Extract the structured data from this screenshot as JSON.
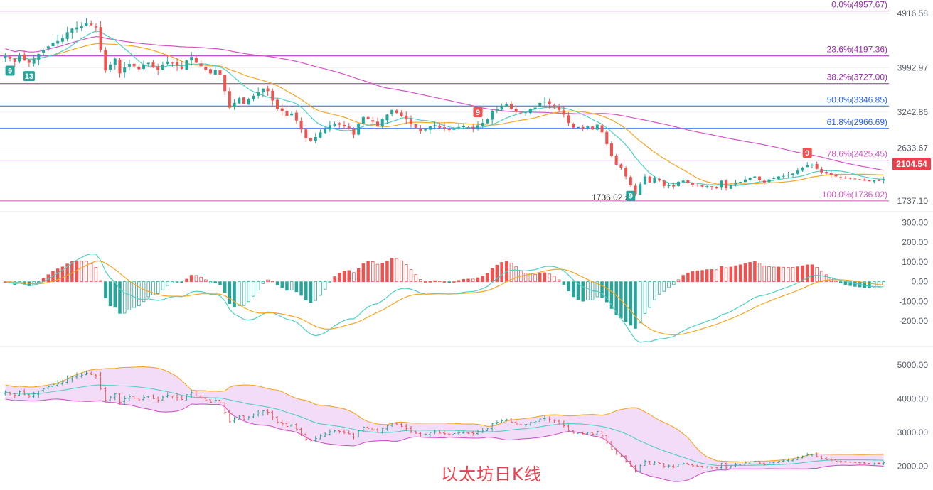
{
  "caption": "以太坊日K线",
  "current_price_label": "2104.54",
  "low_marker_label": "1736.02",
  "colors": {
    "up": "#26a69a",
    "down": "#ef5350",
    "ma_short": "#4dd0c4",
    "ma_mid": "#f5a623",
    "ma_long": "#d454c8",
    "macd_dif": "#4dd0c4",
    "macd_dea": "#f5a623",
    "boll_upper": "#f5a623",
    "boll_mid": "#4dd0c4",
    "boll_lower": "#d454c8",
    "boll_fill": "#f3dcf7"
  },
  "chart_data": [
    {
      "type": "candlestick",
      "panel": "price",
      "yaxis_ticks": [
        "4916.58",
        "3992.97",
        "3242.86",
        "2633.67",
        "1737.10"
      ],
      "ylim": [
        1650,
        5050
      ],
      "fibonacci_levels": [
        {
          "label": "0.0%(4957.67)",
          "value": 4957.67,
          "color": "#9c27b0"
        },
        {
          "label": "23.6%(4197.36)",
          "value": 4197.36,
          "color": "#9c27b0"
        },
        {
          "label": "38.2%(3727.00)",
          "value": 3727.0,
          "color": "#9c27b0"
        },
        {
          "label": "50.0%(3346.85)",
          "value": 3346.85,
          "color": "#2962ff"
        },
        {
          "label": "61.8%(2966.69)",
          "value": 2966.69,
          "color": "#2962ff"
        },
        {
          "label": "78.6%(2425.45)",
          "value": 2425.45,
          "color": "#d454c8"
        },
        {
          "label": "100.0%(1736.02)",
          "value": 1736.02,
          "color": "#d454c8"
        }
      ],
      "td_markers": [
        {
          "text": "9",
          "kind": "buy",
          "index": 1
        },
        {
          "text": "13",
          "kind": "buy",
          "index": 5
        },
        {
          "text": "9",
          "kind": "sell",
          "index": 99
        },
        {
          "text": "9",
          "kind": "buy",
          "index": 131
        },
        {
          "text": "9",
          "kind": "sell",
          "index": 168
        }
      ],
      "closes": [
        4200,
        4150,
        4100,
        4210,
        4120,
        4080,
        4150,
        4230,
        4300,
        4360,
        4420,
        4450,
        4500,
        4600,
        4660,
        4680,
        4700,
        4760,
        4720,
        4680,
        4300,
        3950,
        4050,
        4150,
        3900,
        4000,
        4060,
        4020,
        3970,
        4040,
        4080,
        4000,
        3960,
        4050,
        4100,
        4080,
        4030,
        3980,
        4120,
        4180,
        4080,
        4020,
        3960,
        3900,
        3960,
        3880,
        3600,
        3320,
        3400,
        3480,
        3380,
        3460,
        3520,
        3580,
        3640,
        3600,
        3440,
        3300,
        3260,
        3180,
        3220,
        3100,
        2950,
        2800,
        2760,
        2820,
        2900,
        2960,
        3020,
        3050,
        3030,
        3000,
        2960,
        2860,
        3050,
        3160,
        3120,
        3080,
        3000,
        3120,
        3200,
        3280,
        3230,
        3180,
        3120,
        3040,
        2980,
        2920,
        2950,
        3000,
        3020,
        2980,
        2960,
        2940,
        2970,
        2990,
        3000,
        2980,
        2970,
        3020,
        3060,
        3120,
        3260,
        3300,
        3350,
        3380,
        3300,
        3250,
        3230,
        3240,
        3300,
        3320,
        3400,
        3420,
        3380,
        3350,
        3280,
        3200,
        3060,
        2980,
        2990,
        2960,
        3010,
        2950,
        3030,
        2900,
        2700,
        2500,
        2350,
        2300,
        2150,
        2000,
        1850,
        2020,
        2150,
        2050,
        2120,
        2080,
        1990,
        2010,
        1980,
        2060,
        2080,
        2040,
        2010,
        2000,
        1980,
        1990,
        1970,
        1950,
        2080,
        1950,
        2010,
        2050,
        2060,
        2100,
        2130,
        2150,
        2090,
        2050,
        2100,
        2120,
        2150,
        2160,
        2180,
        2200,
        2250,
        2300,
        2340,
        2350,
        2280,
        2220,
        2200,
        2180,
        2150,
        2140,
        2130,
        2120,
        2110,
        2100,
        2080,
        2070,
        2090,
        2080,
        2104.54
      ]
    },
    {
      "type": "macd",
      "panel": "macd",
      "yaxis_ticks": [
        "300.00",
        "200.00",
        "100.00",
        "0.00",
        "-100.00",
        "-200.00"
      ],
      "ylim": [
        -300,
        330
      ]
    },
    {
      "type": "bollinger",
      "panel": "boll",
      "yaxis_ticks": [
        "5000.00",
        "4000.00",
        "3000.00",
        "2000.00"
      ],
      "ylim": [
        1400,
        5400
      ]
    }
  ]
}
